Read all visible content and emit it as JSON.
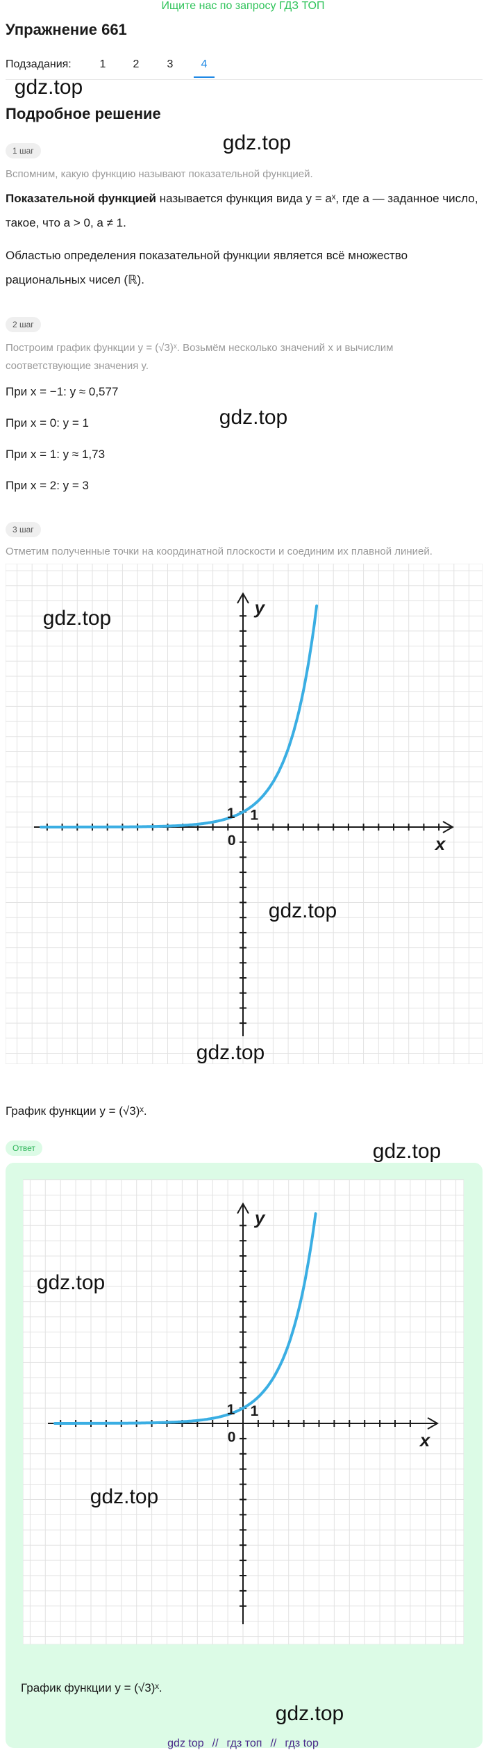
{
  "header": {
    "promo": "Ищите нас по запросу ГДЗ ТОП",
    "title": "Упражнение 661",
    "subtasks_label": "Подзадания:",
    "subtasks": [
      "1",
      "2",
      "3",
      "4"
    ]
  },
  "section_title": "Подробное решение",
  "steps": [
    {
      "badge": "1 шаг",
      "intro": "Вспомним, какую функцию называют показательной функцией.",
      "definition": {
        "bold": "Показательной функцией",
        "text": " называется функция вида y = aˣ, где a — заданное число, такое, что a > 0, a ≠ 1."
      },
      "domain": "Областью определения показательной функции является всё множество рациональных чисел (ℝ)."
    },
    {
      "badge": "2 шаг",
      "intro": "Построим график функции y = (√3)ˣ. Возьмём несколько значений x и вычислим соответствующие значения y.",
      "points": [
        "При x = −1: y ≈ 0,577",
        "При x = 0: y = 1",
        "При x = 1: y ≈ 1,73",
        "При x = 2: y = 3"
      ]
    },
    {
      "badge": "3 шаг",
      "intro": "Отметим полученные точки на координатной плоскости и соединим их плавной линией.",
      "graph": {
        "y": "y",
        "x": "x",
        "origin": "0",
        "y_one": "1",
        "x_one": "1"
      },
      "caption": "График функции y = (√3)ˣ."
    }
  ],
  "answer": {
    "badge": "Ответ",
    "graph": {
      "y": "y",
      "x": "x",
      "origin": "0",
      "y_one": "1",
      "x_one": "1"
    },
    "caption": "График функции y = (√3)ˣ."
  },
  "watermarks": [
    "gdz.top",
    "gdz.top",
    "gdz.top",
    "gdz.top",
    "gdz.top",
    "gdz.top",
    "gdz.top",
    "gdz.top",
    "gdz.top",
    "gdz.top"
  ],
  "footer": {
    "links": [
      "gdz top",
      "гдз топ",
      "гдз top"
    ],
    "separator": "//"
  }
}
